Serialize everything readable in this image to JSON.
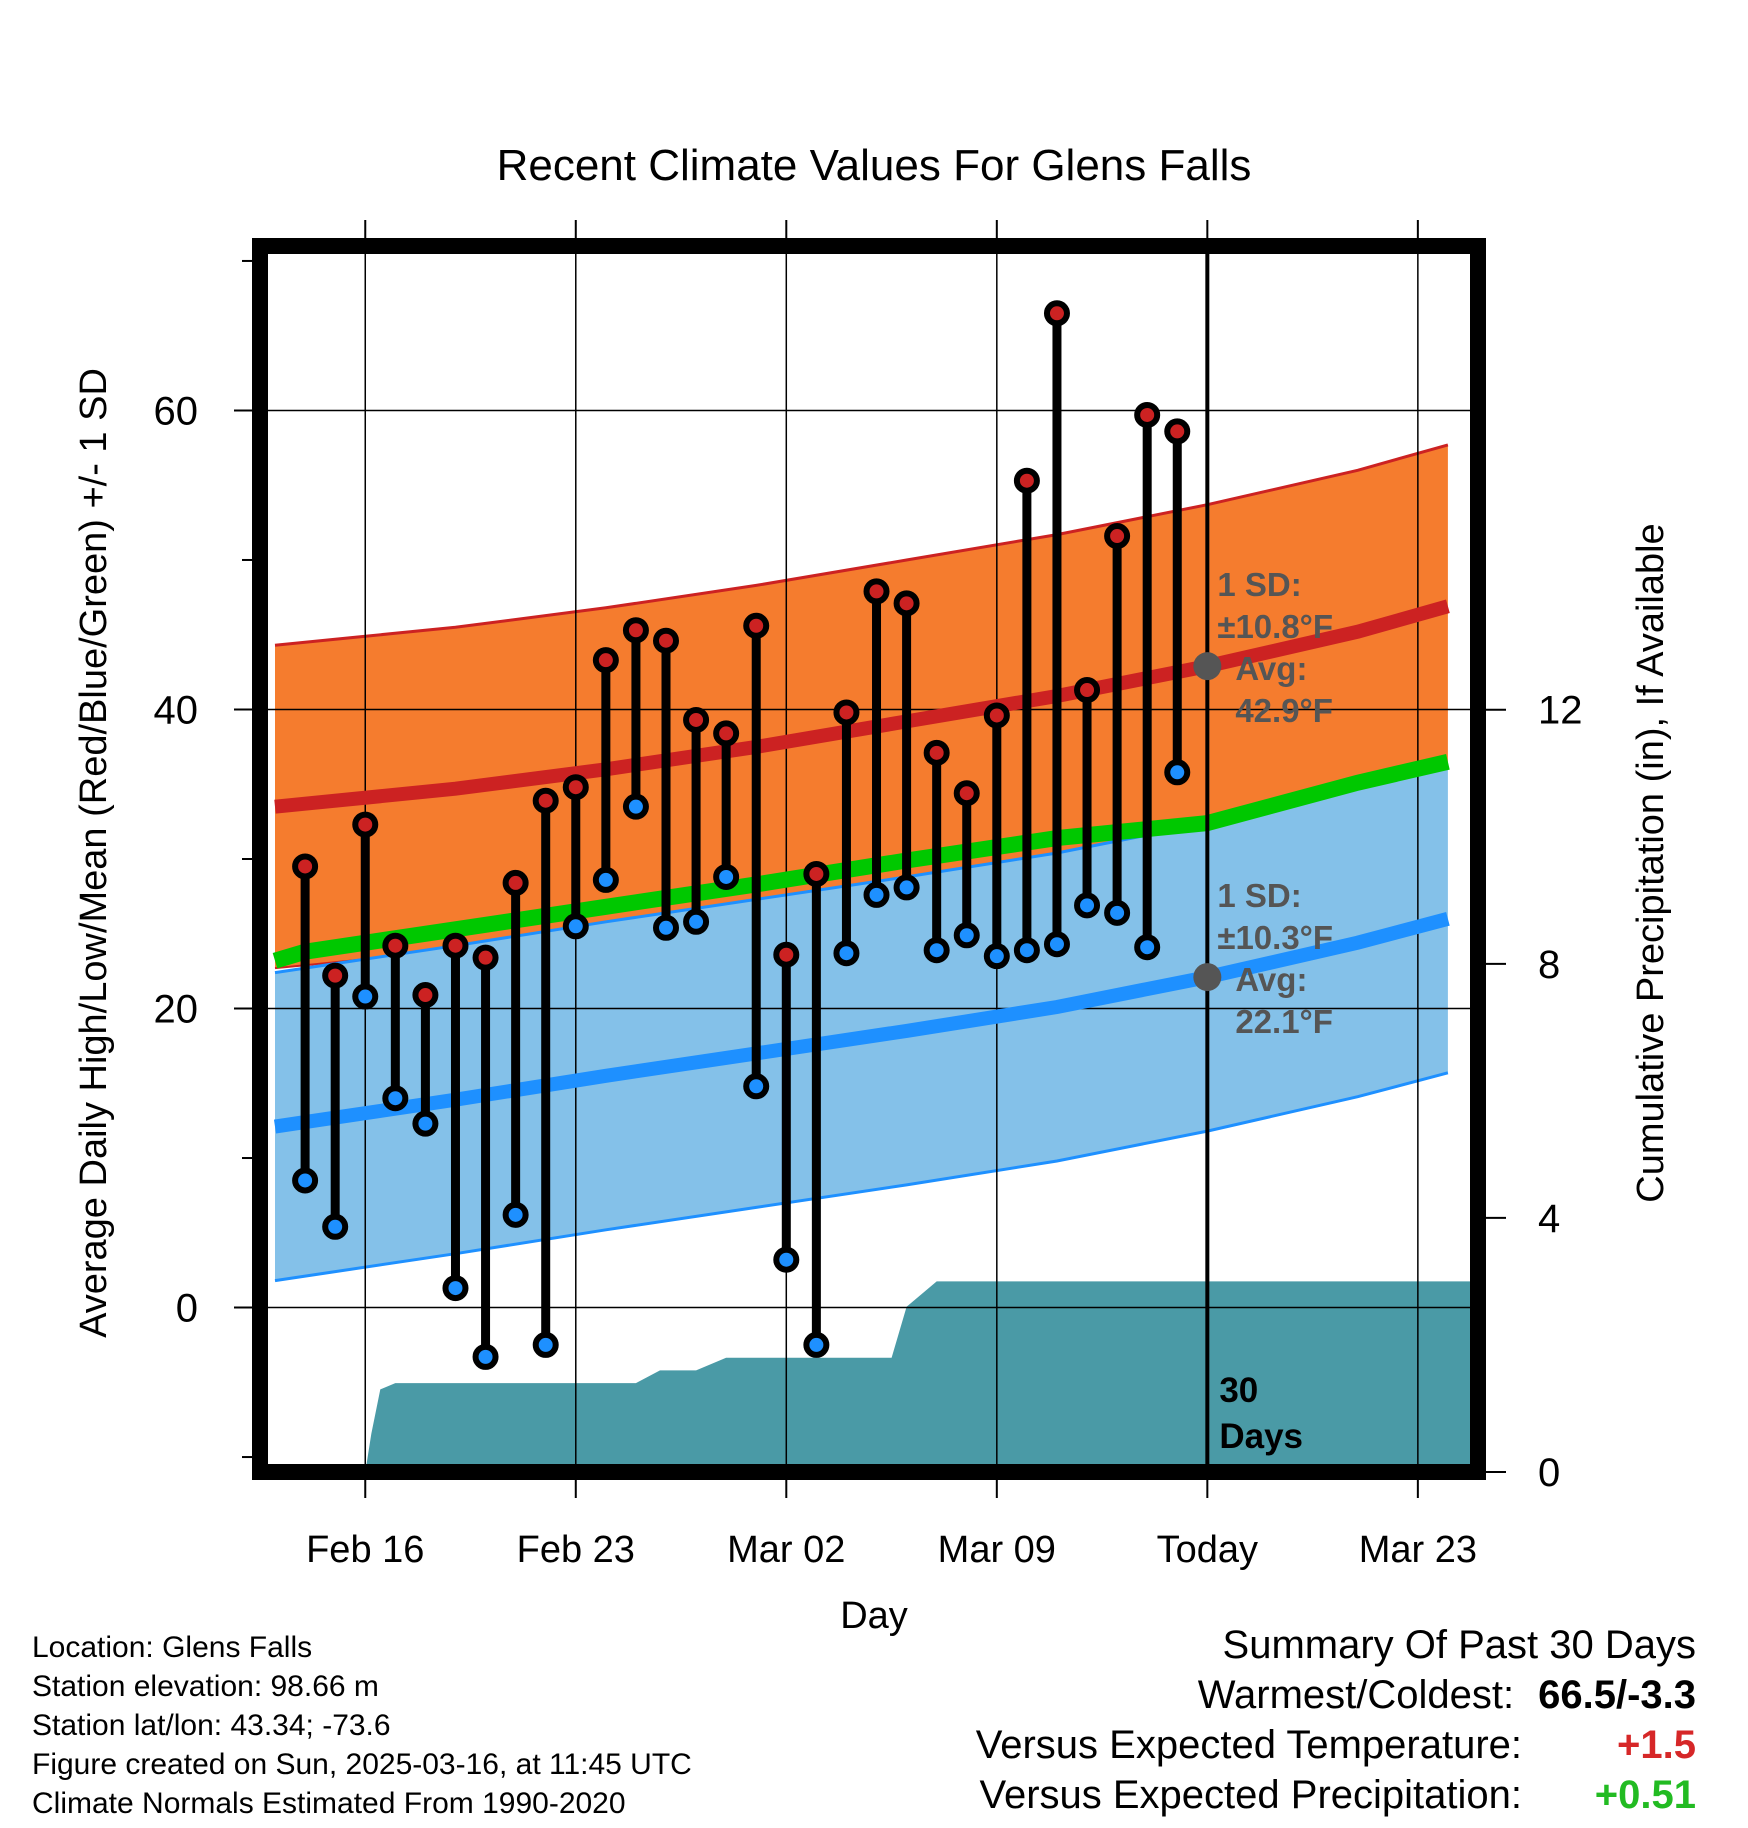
{
  "colors": {
    "high_band": "#f57c2e",
    "high_line": "#cc2222",
    "low_band": "#84c1e9",
    "low_line": "#1e90ff",
    "mean_line": "#00c800",
    "precip_fill": "#4a9aa6",
    "annotation": "#555555",
    "high_marker": "#cc2222",
    "low_marker": "#1e90ff",
    "warm_value": "#d62728",
    "precip_value": "#22bb22"
  },
  "chart_data": {
    "type": "line",
    "title": "Recent Climate Values For Glens Falls",
    "xlabel": "Day",
    "ylabel": "Average Daily High/Low/Mean (Red/Blue/Green) +/- 1 SD",
    "y2label": "Cumulative Precipitation (in), If Available",
    "x_tick_labels": [
      "Feb 16",
      "Feb 23",
      "Mar 02",
      "Mar 09",
      "Today",
      "Mar 23"
    ],
    "x_tick_days": [
      2,
      9,
      16,
      23,
      30,
      37
    ],
    "xlim": [
      -1.5,
      39
    ],
    "ylim": [
      -11,
      71
    ],
    "y_ticks": [
      0,
      20,
      40,
      60
    ],
    "y_minor_ticks": [
      -10,
      10,
      30,
      50,
      70
    ],
    "y2lim": [
      0,
      19.3
    ],
    "y2_ticks": [
      0,
      4,
      8,
      12
    ],
    "grid": true,
    "daily_days": [
      0,
      1,
      2,
      3,
      4,
      5,
      6,
      7,
      8,
      9,
      10,
      11,
      12,
      13,
      14,
      15,
      16,
      17,
      18,
      19,
      20,
      21,
      22,
      23,
      24,
      25,
      26,
      27,
      28,
      29
    ],
    "daily_high": [
      29.5,
      22.2,
      32.3,
      24.2,
      20.9,
      24.2,
      23.4,
      28.4,
      33.9,
      34.8,
      43.3,
      45.3,
      44.6,
      39.3,
      38.4,
      45.6,
      23.6,
      29.0,
      39.8,
      47.9,
      47.1,
      37.1,
      34.4,
      39.6,
      55.3,
      66.5,
      41.3,
      51.6,
      59.7,
      58.6
    ],
    "daily_low": [
      8.5,
      5.4,
      20.8,
      14.0,
      12.3,
      1.3,
      -3.3,
      6.2,
      -2.5,
      25.5,
      28.6,
      33.5,
      25.4,
      25.8,
      28.8,
      14.8,
      3.2,
      -2.5,
      23.7,
      27.6,
      28.1,
      23.9,
      24.9,
      23.5,
      23.9,
      24.3,
      26.9,
      26.4,
      24.1,
      35.8
    ],
    "normal_days": [
      -1,
      0,
      5,
      10,
      15,
      20,
      25,
      30,
      35,
      38
    ],
    "normal_high": [
      33.5,
      33.7,
      34.7,
      36.0,
      37.5,
      39.2,
      40.9,
      42.9,
      45.2,
      46.9
    ],
    "normal_low": [
      12.1,
      12.4,
      13.9,
      15.5,
      17.0,
      18.5,
      20.1,
      22.1,
      24.4,
      26.0
    ],
    "normal_mean": [
      23.2,
      23.8,
      25.3,
      26.8,
      28.3,
      29.9,
      31.4,
      32.4,
      35.1,
      36.5
    ],
    "sd_high": 10.8,
    "sd_low": 10.3,
    "precip_days": [
      0.9,
      2.0,
      2.2,
      2.5,
      3.0,
      8.0,
      9.0,
      10.0,
      11.0,
      11.8,
      12.0,
      13.0,
      14.0,
      15.0,
      16.0,
      17.0,
      18.0,
      19.0,
      19.5,
      20.0,
      21.0,
      39.0
    ],
    "precip_cum": [
      0.0,
      0.0,
      0.6,
      1.3,
      1.4,
      1.4,
      1.4,
      1.4,
      1.4,
      1.6,
      1.6,
      1.6,
      1.8,
      1.8,
      1.8,
      1.8,
      1.8,
      1.8,
      1.8,
      2.6,
      3.0,
      3.0
    ],
    "today_day": 30,
    "annotations": {
      "high_sd": "1 SD:",
      "high_pm": "±10.8°F",
      "high_avg_label": "Avg:",
      "high_avg_value": "42.9°F",
      "low_sd": "1 SD:",
      "low_pm": "±10.3°F",
      "low_avg_label": "Avg:",
      "low_avg_value": "22.1°F",
      "days_count": "30",
      "days_word": "Days"
    }
  },
  "metadata": {
    "location": "Location: Glens Falls",
    "elevation": "Station elevation: 98.66 m",
    "latlon": "Station lat/lon: 43.34; -73.6",
    "created": "Figure created on Sun, 2025-03-16, at 11:45 UTC",
    "normals": "Climate Normals Estimated From 1990-2020"
  },
  "summary": {
    "title": "Summary Of Past 30 Days",
    "warm_cold_label": "Warmest/Coldest:",
    "warm_cold_value": "66.5/-3.3",
    "temp_label": "Versus Expected Temperature:",
    "temp_value": "+1.5",
    "precip_label": "Versus Expected Precipitation:",
    "precip_value": "+0.51"
  }
}
